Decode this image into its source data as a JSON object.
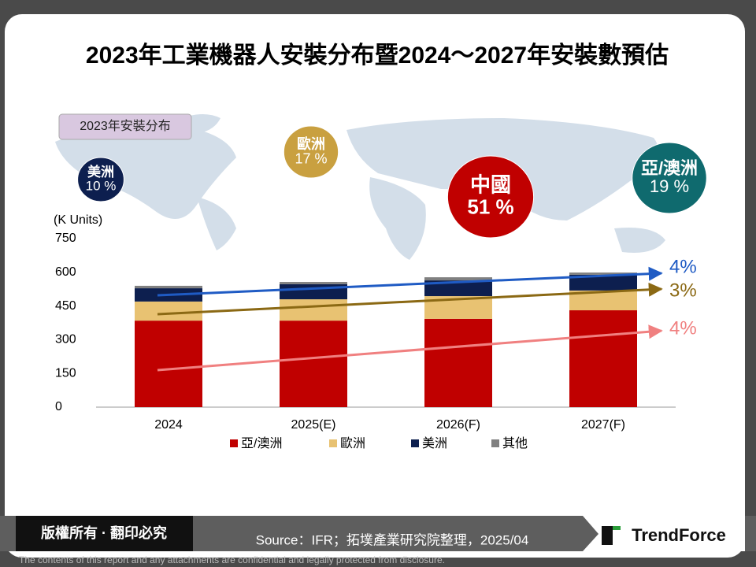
{
  "chart_data": {
    "type": "bar",
    "stacked": true,
    "title": "2023年工業機器人安裝分布暨2024～2027年安裝數預估",
    "y_label": "(K Units)",
    "categories": [
      "2024",
      "2025(E)",
      "2026(F)",
      "2027(F)"
    ],
    "series": [
      {
        "name": "亞/澳洲",
        "color": "#c00000",
        "values": [
          385,
          385,
          393,
          431
        ]
      },
      {
        "name": "歐洲",
        "color": "#e8c272",
        "values": [
          85,
          95,
          101,
          88
        ]
      },
      {
        "name": "美洲",
        "color": "#0d1f4f",
        "values": [
          59,
          67,
          70,
          70
        ]
      },
      {
        "name": "其他",
        "color": "#808080",
        "values": [
          11,
          10,
          14,
          10
        ]
      }
    ],
    "ylim": [
      0,
      750
    ],
    "yticks": [
      0,
      150,
      300,
      450,
      600,
      750
    ],
    "annotations": [
      {
        "text": "4%",
        "color": "#1f5bc4"
      },
      {
        "text": "3%",
        "color": "#8b6914"
      },
      {
        "text": "4%",
        "color": "#f08080"
      }
    ],
    "distribution": {
      "title": "2023年安裝分布",
      "items": [
        {
          "name": "美洲",
          "value": 10,
          "label": "10 %",
          "color": "#0d1f4f"
        },
        {
          "name": "歐洲",
          "value": 17,
          "label": "17 %",
          "color": "#c9a040"
        },
        {
          "name": "中國",
          "value": 51,
          "label": "51 %",
          "color": "#c00000"
        },
        {
          "name": "亞/澳洲",
          "value": 19,
          "label": "19 %",
          "color": "#0f6a6e"
        }
      ]
    }
  },
  "footer": {
    "copyright": "版權所有 · 翻印必究",
    "source": "Source：IFR；拓墣產業研究院整理，2025/04",
    "brand": "TrendForce",
    "disclaimer": "The contents of this report and any attachments are confidential and legally protected from disclosure."
  }
}
